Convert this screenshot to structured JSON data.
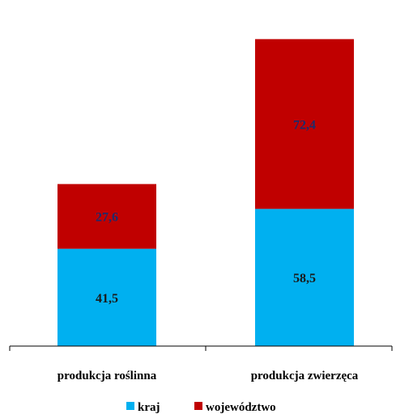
{
  "chart_data": {
    "type": "bar",
    "stacked": true,
    "categories": [
      "produkcja roślinna",
      "produkcja zwierzęca"
    ],
    "series": [
      {
        "name": "kraj",
        "values": [
          41.5,
          58.5
        ],
        "labels": [
          "41,5",
          "58,5"
        ],
        "color": "#00B0F0",
        "label_color": "#1a1a1a"
      },
      {
        "name": "województwo",
        "values": [
          27.6,
          72.4
        ],
        "labels": [
          "27,6",
          "72,4"
        ],
        "color": "#C00000",
        "label_color": "#1F2A6B"
      }
    ],
    "ylim": [
      0,
      136
    ],
    "grid": false,
    "legend_position": "bottom"
  }
}
